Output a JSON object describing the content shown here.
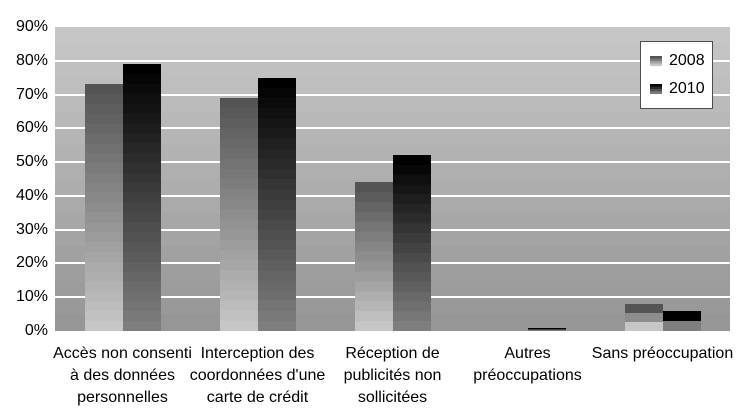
{
  "chart_data": {
    "type": "bar",
    "title": "",
    "xlabel": "",
    "ylabel": "",
    "categories": [
      "Accès non consenti\nà des données\npersonnelles",
      "Interception des\ncoordonnées d'une\ncarte de crédit",
      "Réception de\npublicités non\nsollicitées",
      "Autres\npréoccupations",
      "Sans préoccupation"
    ],
    "series": [
      {
        "name": "2008",
        "values": [
          73,
          69,
          44,
          0,
          8
        ],
        "color_top": "#545454",
        "color_bottom": "#c6c6c6"
      },
      {
        "name": "2010",
        "values": [
          79,
          75,
          52,
          1,
          6
        ],
        "color_top": "#000000",
        "color_bottom": "#7e7e7e"
      }
    ],
    "unit": "%",
    "ylim": [
      0,
      90
    ],
    "y_ticks": [
      "0%",
      "10%",
      "20%",
      "30%",
      "40%",
      "50%",
      "60%",
      "70%",
      "80%",
      "90%"
    ],
    "grid": true,
    "legend_position": "top-right",
    "colors": {
      "page_background": "#ffffff",
      "plot_background_top": "#c6c6c6",
      "plot_background_bottom": "#969696",
      "gridline": "#ffffff",
      "text": "#000000",
      "legend_border": "#4d4d4d"
    }
  }
}
